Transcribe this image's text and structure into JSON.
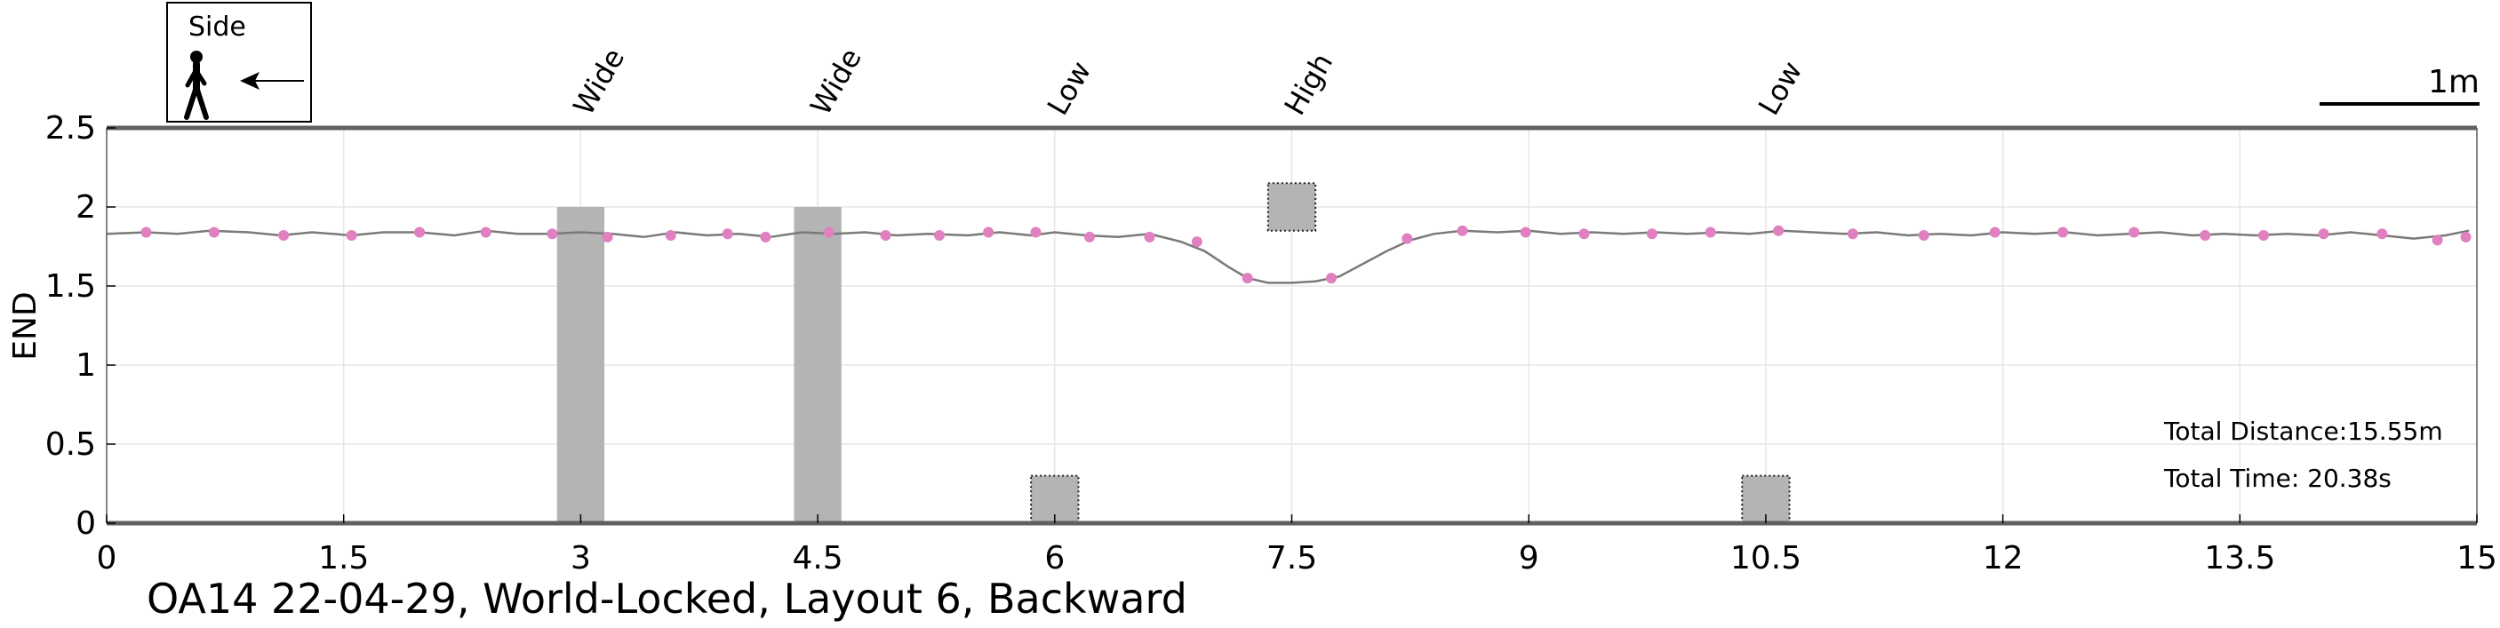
{
  "caption": "OA14 22-04-29, World-Locked, Layout 6, Backward",
  "legend": {
    "title": "Side",
    "icon": "walking-person-icon",
    "arrow": "left-arrow-icon"
  },
  "scale_bar": {
    "label": "1m"
  },
  "info": {
    "distance": "Total Distance:15.55m",
    "time": "Total Time: 20.38s"
  },
  "colors": {
    "axis": "#606060",
    "path_line": "#7a7a7a",
    "points": "#e080c0",
    "obstacle": "#b4b4b4",
    "grid": "#e6e6e6"
  },
  "chart_data": {
    "type": "line",
    "ylabel": "END",
    "xlim": [
      0,
      15
    ],
    "ylim": [
      0,
      2.5
    ],
    "xticks": [
      0,
      1.5,
      3,
      4.5,
      6,
      7.5,
      9,
      10.5,
      12,
      13.5,
      15
    ],
    "yticks": [
      0,
      0.5,
      1,
      1.5,
      2,
      2.5
    ],
    "xtick_labels": [
      "0",
      "1.5",
      "3",
      "4.5",
      "6",
      "7.5",
      "9",
      "10.5",
      "12",
      "13.5",
      "15"
    ],
    "ytick_labels": [
      "0",
      "0.5",
      "1",
      "1.5",
      "2",
      "2.5"
    ],
    "grid": true,
    "obstacles": [
      {
        "label": "Wide",
        "x": [
          2.85,
          3.15
        ],
        "y": [
          0,
          2.0
        ],
        "style": "solid"
      },
      {
        "label": "Wide",
        "x": [
          4.35,
          4.65
        ],
        "y": [
          0,
          2.0
        ],
        "style": "solid"
      },
      {
        "label": "Low",
        "x": [
          5.85,
          6.15
        ],
        "y": [
          0,
          0.3
        ],
        "style": "dotted"
      },
      {
        "label": "High",
        "x": [
          7.35,
          7.65
        ],
        "y": [
          1.85,
          2.15
        ],
        "style": "dotted"
      },
      {
        "label": "Low",
        "x": [
          10.35,
          10.65
        ],
        "y": [
          0,
          0.3
        ],
        "style": "dotted"
      }
    ],
    "path": {
      "x": [
        0,
        0.25,
        0.45,
        0.65,
        0.9,
        1.1,
        1.3,
        1.55,
        1.75,
        1.98,
        2.2,
        2.4,
        2.6,
        2.8,
        3.0,
        3.2,
        3.4,
        3.6,
        3.8,
        4.0,
        4.2,
        4.4,
        4.6,
        4.8,
        5.0,
        5.2,
        5.45,
        5.65,
        5.85,
        6.0,
        6.2,
        6.4,
        6.6,
        6.8,
        6.95,
        7.1,
        7.22,
        7.35,
        7.5,
        7.65,
        7.8,
        7.95,
        8.1,
        8.25,
        8.4,
        8.58,
        8.8,
        9.0,
        9.2,
        9.4,
        9.6,
        9.8,
        10.0,
        10.2,
        10.4,
        10.6,
        10.8,
        11.0,
        11.2,
        11.4,
        11.6,
        11.8,
        12.0,
        12.2,
        12.4,
        12.6,
        12.8,
        13.0,
        13.2,
        13.4,
        13.6,
        13.8,
        14.0,
        14.2,
        14.4,
        14.6,
        14.8,
        14.95
      ],
      "y": [
        1.83,
        1.84,
        1.83,
        1.85,
        1.84,
        1.82,
        1.84,
        1.82,
        1.84,
        1.84,
        1.82,
        1.85,
        1.83,
        1.83,
        1.84,
        1.83,
        1.81,
        1.84,
        1.82,
        1.83,
        1.81,
        1.84,
        1.83,
        1.84,
        1.82,
        1.83,
        1.82,
        1.84,
        1.82,
        1.84,
        1.82,
        1.81,
        1.83,
        1.78,
        1.72,
        1.62,
        1.55,
        1.52,
        1.52,
        1.53,
        1.56,
        1.64,
        1.72,
        1.79,
        1.83,
        1.85,
        1.84,
        1.85,
        1.83,
        1.84,
        1.83,
        1.84,
        1.83,
        1.84,
        1.83,
        1.85,
        1.84,
        1.83,
        1.84,
        1.82,
        1.83,
        1.82,
        1.84,
        1.83,
        1.84,
        1.82,
        1.83,
        1.84,
        1.82,
        1.83,
        1.82,
        1.83,
        1.82,
        1.84,
        1.82,
        1.8,
        1.82,
        1.85
      ]
    },
    "footsteps": {
      "x": [
        0.25,
        0.68,
        1.12,
        1.55,
        1.98,
        2.4,
        2.82,
        3.17,
        3.57,
        3.93,
        4.17,
        4.57,
        4.93,
        5.27,
        5.58,
        5.88,
        6.22,
        6.6,
        6.9,
        7.22,
        7.75,
        8.23,
        8.58,
        8.98,
        9.35,
        9.78,
        10.15,
        10.58,
        11.05,
        11.5,
        11.95,
        12.38,
        12.83,
        13.28,
        13.65,
        14.03,
        14.4,
        14.75,
        14.93
      ],
      "y": [
        1.84,
        1.84,
        1.82,
        1.82,
        1.84,
        1.84,
        1.83,
        1.81,
        1.82,
        1.83,
        1.81,
        1.84,
        1.82,
        1.82,
        1.84,
        1.84,
        1.81,
        1.81,
        1.78,
        1.55,
        1.55,
        1.8,
        1.85,
        1.84,
        1.83,
        1.83,
        1.84,
        1.85,
        1.83,
        1.82,
        1.84,
        1.84,
        1.84,
        1.82,
        1.82,
        1.83,
        1.83,
        1.79,
        1.81
      ]
    }
  }
}
